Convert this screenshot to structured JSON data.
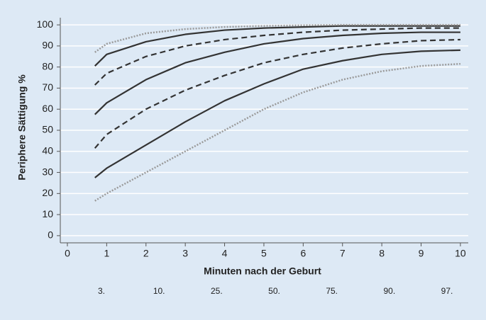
{
  "chart_data": {
    "type": "line",
    "x_label": "Minuten nach der Geburt",
    "y_label": "Periphere Sättigung %",
    "x": [
      0.7,
      1,
      2,
      3,
      4,
      5,
      6,
      7,
      8,
      9,
      10
    ],
    "series": [
      {
        "name": "3.",
        "color": "#9a9a9a",
        "dash": "2 2",
        "values": [
          16.5,
          20,
          30,
          40,
          50,
          60,
          68,
          74,
          78,
          80.5,
          81.5
        ]
      },
      {
        "name": "10.",
        "color": "#333333",
        "dash": "none",
        "values": [
          27.5,
          32,
          43,
          54,
          64,
          72,
          79,
          83,
          86,
          87.5,
          88
        ]
      },
      {
        "name": "25.",
        "color": "#333333",
        "dash": "8 5",
        "values": [
          41.5,
          48,
          60,
          69,
          76,
          82,
          86,
          89,
          91,
          92.5,
          93
        ]
      },
      {
        "name": "50.",
        "color": "#333333",
        "dash": "none",
        "values": [
          57.5,
          63,
          74,
          82,
          87,
          91,
          93.5,
          95,
          96,
          96.5,
          96.5
        ]
      },
      {
        "name": "75.",
        "color": "#333333",
        "dash": "8 5",
        "values": [
          71.5,
          77,
          85,
          90,
          93,
          95,
          96.5,
          97.5,
          98,
          98.5,
          98.5
        ]
      },
      {
        "name": "90.",
        "color": "#333333",
        "dash": "none",
        "values": [
          80.5,
          86,
          92,
          95.5,
          97.5,
          98.5,
          99,
          99.5,
          99.5,
          99.5,
          99.5
        ]
      },
      {
        "name": "97.",
        "color": "#9a9a9a",
        "dash": "2 2",
        "values": [
          87,
          91,
          96,
          98,
          99,
          99.5,
          99.8,
          100,
          100,
          100,
          100
        ]
      }
    ],
    "xlim": [
      -0.18,
      10.2
    ],
    "ylim": [
      -3.4,
      103.4
    ],
    "xticks": [
      0,
      1,
      2,
      3,
      4,
      5,
      6,
      7,
      8,
      9,
      10
    ],
    "yticks": [
      0,
      10,
      20,
      30,
      40,
      50,
      60,
      70,
      80,
      90,
      100
    ],
    "grid": true
  }
}
